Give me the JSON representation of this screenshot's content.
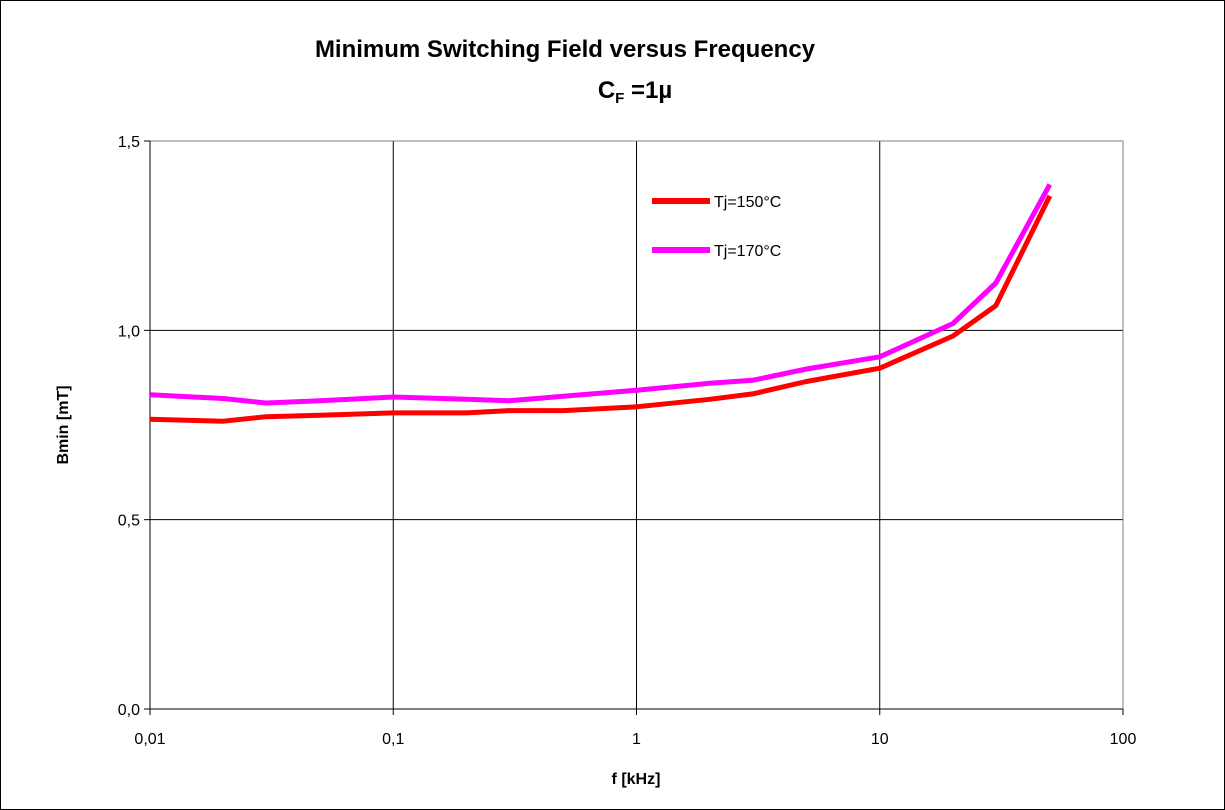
{
  "chart_data": {
    "type": "line",
    "title": "Minimum Switching Field versus Frequency",
    "subtitle": {
      "main": "C",
      "sub": "F",
      "rest": " =1µ"
    },
    "xlabel": "f [kHz]",
    "ylabel": "Bmin [mT]",
    "x_scale": "log",
    "xlim": [
      0.01,
      100
    ],
    "ylim": [
      0.0,
      1.5
    ],
    "x_tick_labels": [
      "0,01",
      "0,1",
      "1",
      "10",
      "100"
    ],
    "y_tick_labels": [
      "0,0",
      "0,5",
      "1,0",
      "1,5"
    ],
    "grid": true,
    "legend_position": "top-right",
    "series": [
      {
        "name": "Tj=150°C",
        "color": "#ff0000",
        "x": [
          0.01,
          0.02,
          0.03,
          0.05,
          0.1,
          0.2,
          0.3,
          0.5,
          1,
          2,
          3,
          5,
          10,
          20,
          30,
          50
        ],
        "y": [
          0.765,
          0.76,
          0.772,
          0.776,
          0.782,
          0.782,
          0.788,
          0.788,
          0.798,
          0.818,
          0.832,
          0.865,
          0.9,
          0.985,
          1.065,
          1.355
        ]
      },
      {
        "name": "Tj=170°C",
        "color": "#ff00ff",
        "x": [
          0.01,
          0.02,
          0.03,
          0.05,
          0.1,
          0.2,
          0.3,
          0.5,
          1,
          2,
          3,
          5,
          10,
          20,
          30,
          50
        ],
        "y": [
          0.83,
          0.82,
          0.808,
          0.814,
          0.824,
          0.818,
          0.814,
          0.826,
          0.842,
          0.86,
          0.868,
          0.898,
          0.93,
          1.018,
          1.125,
          1.385
        ]
      }
    ]
  }
}
